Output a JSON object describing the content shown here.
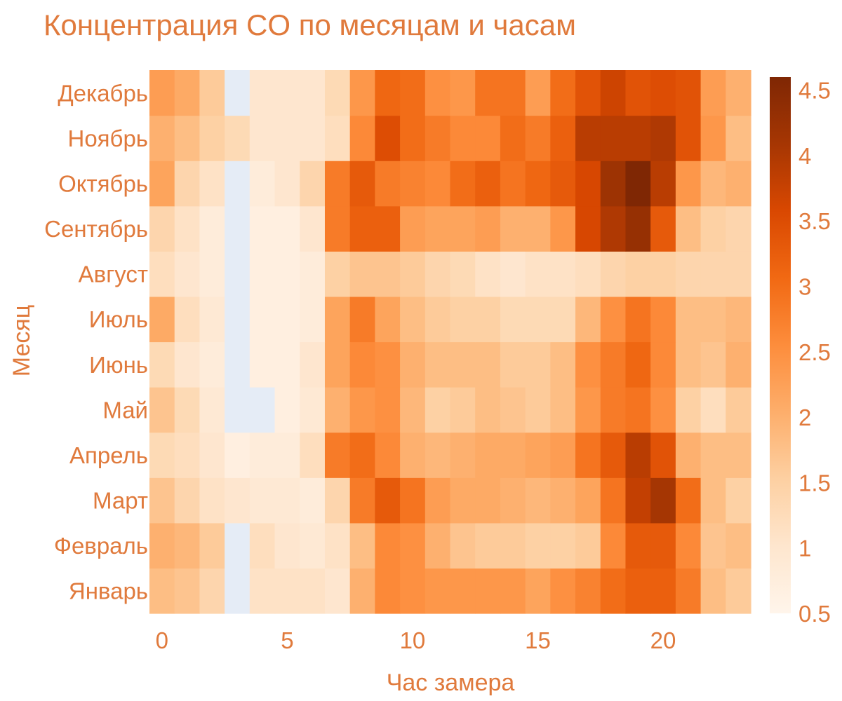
{
  "chart_data": {
    "type": "heatmap",
    "title": "Концентрация CO по месяцам и часам",
    "xlabel": "Час замера",
    "ylabel": "Месяц",
    "x": [
      0,
      1,
      2,
      3,
      4,
      5,
      6,
      7,
      8,
      9,
      10,
      11,
      12,
      13,
      14,
      15,
      16,
      17,
      18,
      19,
      20,
      21,
      22,
      23
    ],
    "x_ticks": [
      0,
      5,
      10,
      15,
      20
    ],
    "y_categories": [
      "Январь",
      "Февраль",
      "Март",
      "Апрель",
      "Май",
      "Июнь",
      "Июль",
      "Август",
      "Сентябрь",
      "Октябрь",
      "Ноябрь",
      "Декабрь"
    ],
    "colorscale": "Oranges",
    "missing_color": "#E5ECF6",
    "zlim": [
      0.5,
      4.6
    ],
    "colorbar_ticks": [
      0.5,
      1,
      1.5,
      2,
      2.5,
      3,
      3.5,
      4,
      4.5
    ],
    "z": [
      [
        1.8,
        1.7,
        1.4,
        null,
        1.1,
        1.1,
        1.1,
        1.0,
        2.0,
        2.6,
        2.5,
        2.4,
        2.4,
        2.4,
        2.4,
        2.2,
        2.5,
        2.7,
        3.0,
        3.2,
        3.2,
        2.8,
        1.8,
        1.6
      ],
      [
        2.0,
        1.9,
        1.6,
        null,
        1.2,
        1.0,
        0.9,
        1.1,
        1.8,
        2.6,
        2.5,
        2.0,
        1.7,
        1.6,
        1.6,
        1.5,
        1.5,
        1.6,
        2.6,
        3.3,
        3.3,
        2.6,
        1.7,
        1.8
      ],
      [
        1.7,
        1.4,
        1.1,
        1.0,
        0.9,
        0.9,
        0.8,
        1.4,
        2.8,
        3.3,
        2.9,
        2.3,
        2.1,
        2.1,
        2.0,
        1.9,
        2.0,
        2.2,
        2.9,
        3.8,
        4.1,
        3.0,
        1.8,
        1.5
      ],
      [
        1.3,
        1.2,
        1.0,
        0.7,
        0.8,
        0.8,
        1.2,
        2.8,
        3.0,
        2.6,
        2.0,
        1.9,
        2.0,
        2.1,
        2.1,
        2.2,
        2.3,
        2.9,
        3.3,
        3.9,
        3.4,
        2.0,
        1.8,
        1.8
      ],
      [
        1.7,
        1.3,
        0.9,
        null,
        null,
        0.7,
        0.9,
        2.0,
        2.4,
        2.5,
        1.9,
        1.5,
        1.6,
        1.8,
        1.7,
        1.6,
        1.8,
        2.4,
        2.8,
        2.9,
        2.5,
        1.5,
        1.2,
        1.6
      ],
      [
        1.3,
        1.0,
        0.8,
        null,
        0.7,
        0.7,
        1.0,
        2.2,
        2.6,
        2.5,
        2.0,
        1.8,
        1.8,
        1.8,
        1.6,
        1.6,
        1.8,
        2.5,
        2.8,
        3.1,
        2.6,
        1.8,
        1.7,
        2.0
      ],
      [
        2.1,
        1.2,
        0.9,
        null,
        0.7,
        0.7,
        0.8,
        2.2,
        2.8,
        2.2,
        1.8,
        1.6,
        1.5,
        1.5,
        1.3,
        1.3,
        1.3,
        1.9,
        2.5,
        2.9,
        2.6,
        1.8,
        1.8,
        1.9
      ],
      [
        1.2,
        1.0,
        0.8,
        null,
        0.7,
        0.7,
        0.8,
        1.5,
        1.7,
        1.7,
        1.6,
        1.4,
        1.3,
        1.1,
        1.0,
        1.1,
        1.1,
        1.2,
        1.4,
        1.5,
        1.5,
        1.4,
        1.4,
        1.4
      ],
      [
        1.4,
        1.1,
        0.8,
        null,
        0.7,
        0.7,
        1.0,
        2.8,
        3.2,
        3.2,
        2.3,
        2.2,
        2.2,
        2.3,
        2.0,
        2.0,
        2.4,
        3.6,
        4.0,
        4.3,
        3.3,
        1.8,
        1.5,
        1.4
      ],
      [
        2.2,
        1.4,
        1.1,
        null,
        0.8,
        1.0,
        1.4,
        2.8,
        3.3,
        2.8,
        2.7,
        2.6,
        3.0,
        3.2,
        2.9,
        3.1,
        3.3,
        3.6,
        4.2,
        4.6,
        3.9,
        2.4,
        1.9,
        2.0
      ],
      [
        2.0,
        1.8,
        1.5,
        1.3,
        1.0,
        1.0,
        1.0,
        1.2,
        2.6,
        3.5,
        3.0,
        2.8,
        2.6,
        2.6,
        3.0,
        2.8,
        3.2,
        3.9,
        3.9,
        3.9,
        4.0,
        3.4,
        2.4,
        1.8
      ],
      [
        2.3,
        2.1,
        1.6,
        null,
        1.0,
        1.0,
        1.0,
        1.3,
        2.4,
        3.1,
        3.0,
        2.5,
        2.4,
        2.9,
        2.9,
        2.3,
        3.0,
        3.4,
        3.7,
        3.4,
        3.5,
        3.4,
        2.3,
        2.0
      ]
    ]
  }
}
